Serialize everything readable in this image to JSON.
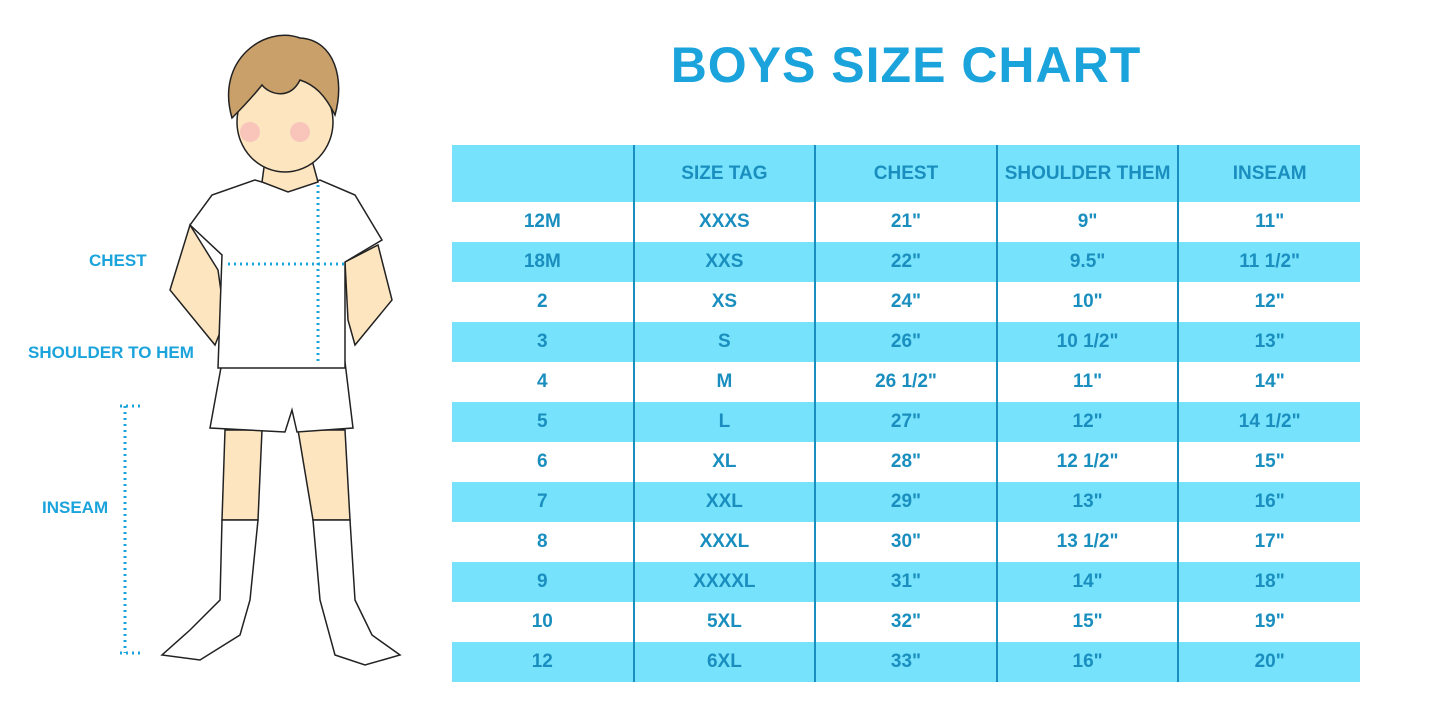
{
  "title": "BOYS SIZE CHART",
  "labels": {
    "chest": "CHEST",
    "shoulder_to_hem": "SHOULDER TO HEM",
    "inseam": "INSEAM"
  },
  "colors": {
    "accent": "#1ba3dc",
    "row_highlight": "#76e2fb",
    "table_text": "#1a8fbf"
  },
  "table": {
    "headers": [
      "",
      "SIZE TAG",
      "CHEST",
      "SHOULDER THEM",
      "INSEAM"
    ],
    "rows": [
      [
        "12M",
        "XXXS",
        "21\"",
        "9\"",
        "11\""
      ],
      [
        "18M",
        "XXS",
        "22\"",
        "9.5\"",
        "11 1/2\""
      ],
      [
        "2",
        "XS",
        "24\"",
        "10\"",
        "12\""
      ],
      [
        "3",
        "S",
        "26\"",
        "10 1/2\"",
        "13\""
      ],
      [
        "4",
        "M",
        "26 1/2\"",
        "11\"",
        "14\""
      ],
      [
        "5",
        "L",
        "27\"",
        "12\"",
        "14 1/2\""
      ],
      [
        "6",
        "XL",
        "28\"",
        "12 1/2\"",
        "15\""
      ],
      [
        "7",
        "XXL",
        "29\"",
        "13\"",
        "16\""
      ],
      [
        "8",
        "XXXL",
        "30\"",
        "13 1/2\"",
        "17\""
      ],
      [
        "9",
        "XXXXL",
        "31\"",
        "14\"",
        "18\""
      ],
      [
        "10",
        "5XL",
        "32\"",
        "15\"",
        "19\""
      ],
      [
        "12",
        "6XL",
        "33\"",
        "16\"",
        "20\""
      ]
    ]
  }
}
